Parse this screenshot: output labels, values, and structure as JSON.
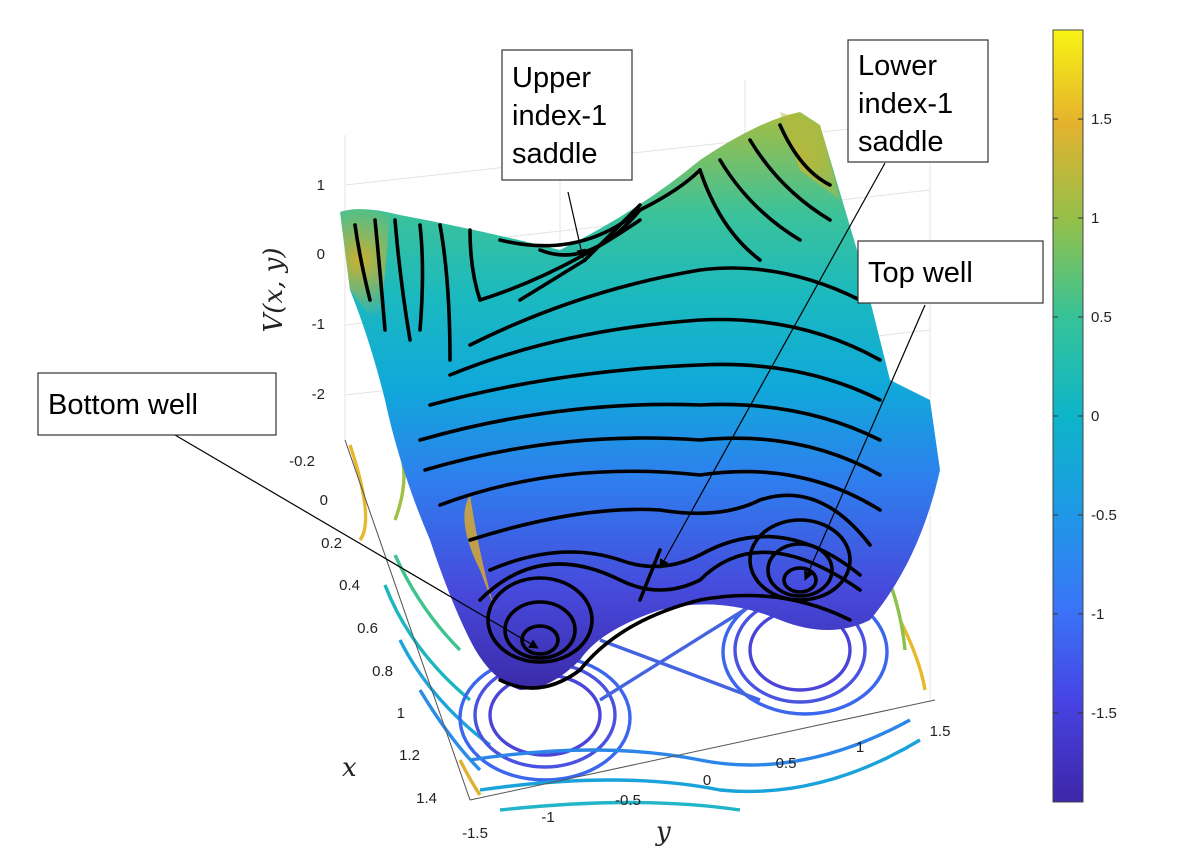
{
  "chart_data": {
    "type": "surface",
    "zlabel": "V(x, y)",
    "xlabel": "x",
    "ylabel": "y",
    "x_ticks": [
      "-0.2",
      "0",
      "0.2",
      "0.4",
      "0.6",
      "0.8",
      "1",
      "1.2",
      "1.4"
    ],
    "y_ticks": [
      "-1.5",
      "-1",
      "-0.5",
      "0",
      "0.5",
      "1",
      "1.5"
    ],
    "z_ticks": [
      "1",
      "0",
      "-1",
      "-2"
    ],
    "xlim": [
      -0.3,
      1.5
    ],
    "ylim": [
      -1.5,
      1.5
    ],
    "zlim": [
      -2.4,
      1.8
    ],
    "colorbar": {
      "ticks": [
        "1.5",
        "1",
        "0.5",
        "0",
        "-0.5",
        "-1",
        "-1.5"
      ],
      "range": [
        -1.95,
        1.95
      ],
      "colormap": "parula"
    },
    "annotations": [
      {
        "lines": [
          "Upper",
          "index-1",
          "saddle"
        ],
        "points_to": "upper-index-1-saddle"
      },
      {
        "lines": [
          "Lower",
          "index-1",
          "saddle"
        ],
        "points_to": "lower-index-1-saddle"
      },
      {
        "lines": [
          "Top well"
        ],
        "points_to": "top-well"
      },
      {
        "lines": [
          "Bottom well"
        ],
        "points_to": "bottom-well"
      }
    ],
    "features": {
      "bottom_well": {
        "y": -1.0,
        "value": -1.85
      },
      "top_well": {
        "y": 1.0,
        "value": -1.85
      },
      "upper_saddle": {
        "y": -0.1,
        "value": 0.05
      },
      "lower_saddle": {
        "y": 0.0,
        "value": -1.25
      }
    },
    "grid": true
  }
}
